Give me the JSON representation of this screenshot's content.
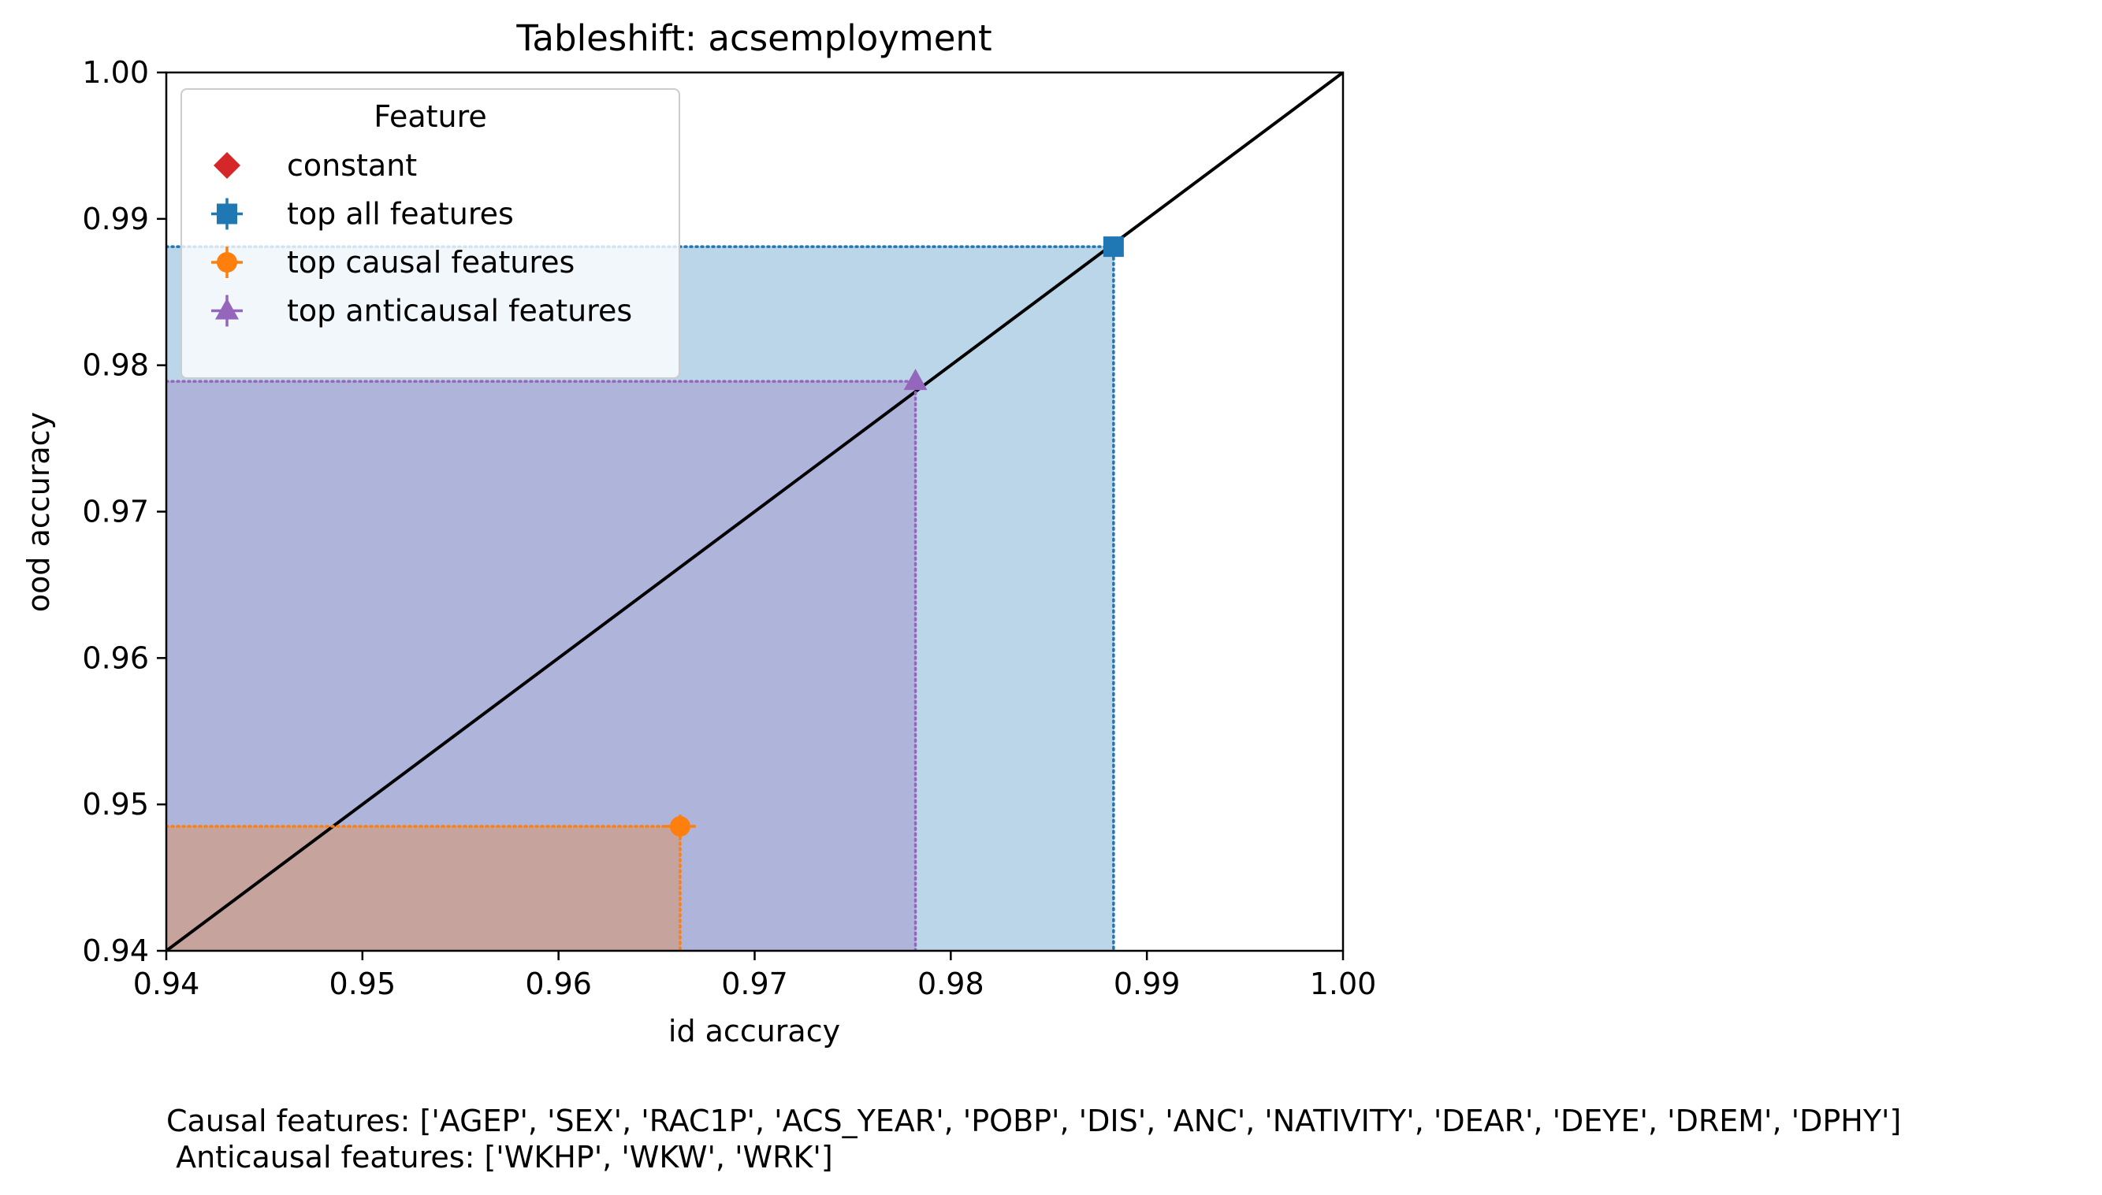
{
  "chart_data": {
    "type": "scatter",
    "title": "Tableshift: acsemployment",
    "xlabel": "id accuracy",
    "ylabel": "ood accuracy",
    "xlim": [
      0.94,
      1.0
    ],
    "ylim": [
      0.94,
      1.0
    ],
    "xticks": [
      "0.94",
      "0.95",
      "0.96",
      "0.97",
      "0.98",
      "0.99",
      "1.00"
    ],
    "yticks": [
      "0.94",
      "0.95",
      "0.96",
      "0.97",
      "0.98",
      "0.99",
      "1.00"
    ],
    "diagonal": true,
    "grid": false,
    "legend": {
      "title": "Feature",
      "placement": "top-left"
    },
    "series": [
      {
        "name": "constant",
        "marker": "diamond",
        "color": "#d62728",
        "points": []
      },
      {
        "name": "top all features",
        "marker": "square",
        "color": "#1f77b4",
        "points": [
          {
            "x": 0.9883,
            "y": 0.9881,
            "xerr": 0.0002,
            "yerr": 0.0002
          }
        ]
      },
      {
        "name": "top causal features",
        "marker": "circle",
        "color": "#ff7f0e",
        "points": [
          {
            "x": 0.9662,
            "y": 0.9485,
            "xerr": 0.0008,
            "yerr": 0.0008
          }
        ]
      },
      {
        "name": "top anticausal features",
        "marker": "triangle",
        "color": "#9467bd",
        "points": [
          {
            "x": 0.9782,
            "y": 0.9789,
            "xerr": 0.0002,
            "yerr": 0.0002
          }
        ]
      }
    ],
    "footnote": [
      "Causal features: ['AGEP', 'SEX', 'RAC1P', 'ACS_YEAR', 'POBP', 'DIS', 'ANC', 'NATIVITY', 'DEAR', 'DEYE', 'DREM', 'DPHY']",
      " Anticausal features: ['WKHP', 'WKW', 'WRK']"
    ]
  }
}
